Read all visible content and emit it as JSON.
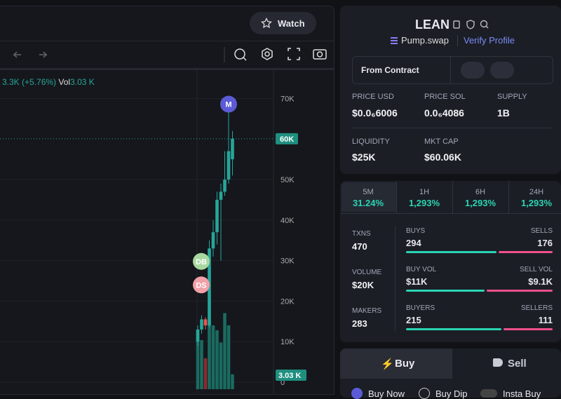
{
  "header": {
    "watch": "Watch"
  },
  "chart": {
    "type": "candlestick",
    "change": "3.3K (+5.76%)",
    "vol_label": "Vol",
    "vol_value": "3.03 K",
    "ylim": [
      0,
      77000
    ],
    "yticks": [
      {
        "value": 0,
        "label": "0"
      },
      {
        "value": 10000,
        "label": "10K"
      },
      {
        "value": 20000,
        "label": "20K"
      },
      {
        "value": 30000,
        "label": "30K"
      },
      {
        "value": 40000,
        "label": "40K"
      },
      {
        "value": 50000,
        "label": "50K"
      },
      {
        "value": 70000,
        "label": "70K"
      }
    ],
    "price_line": {
      "value": 60060,
      "label": "60K"
    },
    "candles": [
      {
        "open": 10000,
        "high": 14000,
        "low": 9000,
        "close": 13000
      },
      {
        "open": 13000,
        "high": 16500,
        "low": 12000,
        "close": 15500
      },
      {
        "open": 15500,
        "high": 16000,
        "low": 13000,
        "close": 14000
      },
      {
        "open": 14000,
        "high": 35000,
        "low": 13500,
        "close": 33000
      },
      {
        "open": 33000,
        "high": 40000,
        "low": 31000,
        "close": 37000
      },
      {
        "open": 37000,
        "high": 47000,
        "low": 34000,
        "close": 45000
      },
      {
        "open": 45000,
        "high": 49000,
        "low": 30000,
        "close": 47000
      },
      {
        "open": 47000,
        "high": 57000,
        "low": 46000,
        "close": 50000
      },
      {
        "open": 50000,
        "high": 68500,
        "low": 49000,
        "close": 57000
      },
      {
        "open": 55000,
        "high": 62000,
        "low": 51000,
        "close": 60060
      }
    ],
    "volumes": [
      11500,
      10000,
      6300,
      14000,
      13000,
      12000,
      9500,
      15500,
      13000,
      3030
    ],
    "volume_badge": {
      "value": 3030,
      "label": "3.03 K"
    },
    "markers": [
      {
        "label": "M",
        "price": 68600,
        "index": 8,
        "color": "#5b5bd6"
      },
      {
        "label": "DB",
        "price": 29800,
        "index": 1,
        "color": "#a8d8a0"
      },
      {
        "label": "DS",
        "price": 24000,
        "index": 1,
        "color": "#f2a0a8"
      }
    ]
  },
  "token": {
    "name": "LEAN",
    "dex": "Pump.swap",
    "verify": "Verify Profile",
    "from_contract": "From Contract",
    "price_usd": {
      "label": "PRICE USD",
      "value": "$0.0₆6006"
    },
    "price_sol": {
      "label": "PRICE SOL",
      "value": "0.0₆4086"
    },
    "supply": {
      "label": "SUPPLY",
      "value": "1B"
    },
    "liquidity": {
      "label": "LIQUIDITY",
      "value": "$25K"
    },
    "mkt_cap": {
      "label": "MKT CAP",
      "value": "$60.06K"
    }
  },
  "tabs": [
    {
      "label": "5M",
      "value": "31.24%"
    },
    {
      "label": "1H",
      "value": "1,293%"
    },
    {
      "label": "6H",
      "value": "1,293%"
    },
    {
      "label": "24H",
      "value": "1,293%"
    }
  ],
  "stats": {
    "txns": {
      "label": "TXNS",
      "value": "470"
    },
    "volume": {
      "label": "VOLUME",
      "value": "$20K"
    },
    "makers": {
      "label": "MAKERS",
      "value": "283"
    },
    "rows": [
      {
        "left_label": "BUYS",
        "left": 294,
        "right_label": "SELLS",
        "right": 176
      },
      {
        "left_label": "BUY VOL",
        "left": 11000,
        "left_text": "$11K",
        "right_label": "SELL VOL",
        "right": 9100,
        "right_text": "$9.1K"
      },
      {
        "left_label": "BUYERS",
        "left": 215,
        "right_label": "SELLERS",
        "right": 111
      }
    ]
  },
  "trade": {
    "buy": "Buy",
    "sell": "Sell",
    "options": [
      "Buy Now",
      "Buy Dip",
      "Insta Buy"
    ]
  }
}
